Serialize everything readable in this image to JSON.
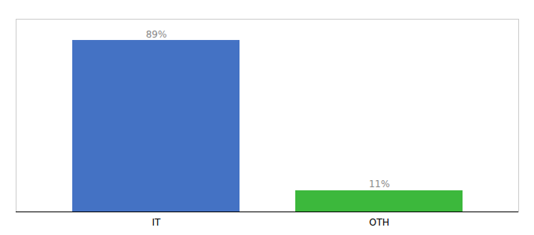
{
  "chart_data": {
    "type": "bar",
    "categories": [
      "IT",
      "OTH"
    ],
    "values": [
      89,
      11
    ],
    "value_labels": [
      "89%",
      "11%"
    ],
    "colors": [
      "#4472c4",
      "#3cb83c"
    ],
    "ylim": [
      0,
      100
    ],
    "data_labels": true,
    "tick_labels": "x",
    "grid": false
  }
}
